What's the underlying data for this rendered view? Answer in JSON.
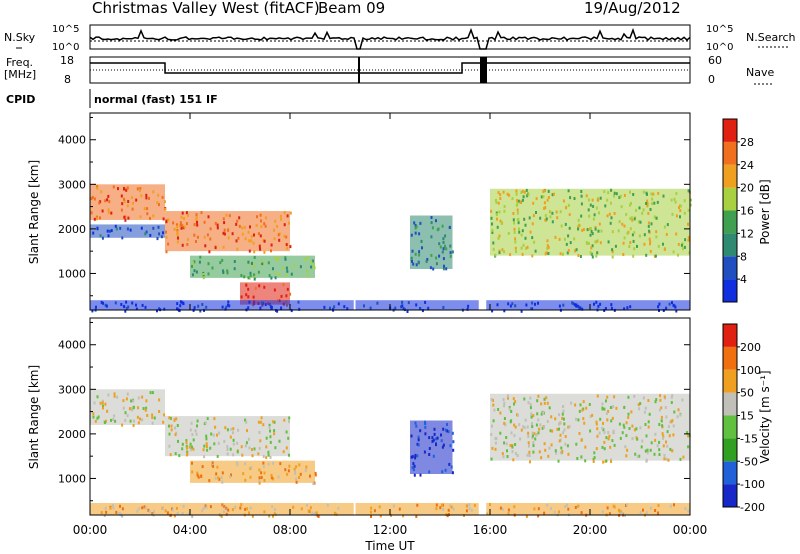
{
  "header": {
    "station": "Christmas Valley West (fitACF)",
    "beam": "Beam 09",
    "date": "19/Aug/2012"
  },
  "side_labels": {
    "nsky": "N.Sky",
    "nsearch": "N.Search",
    "freq": "Freq.",
    "freq_unit": "[MHz]",
    "nave": "Nave",
    "cpid": "CPID",
    "cpid_value": "normal (fast) 151 IF"
  },
  "noise_panel": {
    "left_ticks": [
      "10^5",
      "10^0"
    ],
    "right_ticks": [
      "10^5",
      "10^0"
    ]
  },
  "freq_panel": {
    "left_ticks": [
      "18",
      "8"
    ],
    "right_ticks": [
      "60",
      "0"
    ]
  },
  "colors": {
    "power_scale": [
      "#1030e0",
      "#2050c0",
      "#2e8a70",
      "#3fa050",
      "#a8d040",
      "#f0a020",
      "#f07020",
      "#e02010"
    ],
    "velocity_scale": [
      "#1828c8",
      "#2060d8",
      "#30a020",
      "#60c040",
      "#c0c0b8",
      "#f0a020",
      "#f07010",
      "#e02010"
    ]
  },
  "chart_data": [
    {
      "type": "heatmap",
      "title": "",
      "ylabel": "Slant Range [km]",
      "ylim": [
        180,
        4600
      ],
      "y_ticks": [
        "1000",
        "2000",
        "3000",
        "4000"
      ],
      "xlim": [
        0,
        24
      ],
      "colorbar_label": "Power [dB]",
      "colorbar_ticks": [
        "4",
        "8",
        "12",
        "16",
        "20",
        "24",
        "28"
      ],
      "regions": [
        {
          "t0": 0.0,
          "t1": 3.0,
          "r0": 2200,
          "r1": 3000,
          "level": 6
        },
        {
          "t0": 0.0,
          "t1": 3.0,
          "r0": 1800,
          "r1": 2100,
          "level": 1
        },
        {
          "t0": 3.0,
          "t1": 8.0,
          "r0": 1500,
          "r1": 2400,
          "level": 6
        },
        {
          "t0": 4.0,
          "t1": 9.0,
          "r0": 900,
          "r1": 1400,
          "level": 3
        },
        {
          "t0": 6.0,
          "t1": 8.0,
          "r0": 300,
          "r1": 800,
          "level": 7
        },
        {
          "t0": 12.8,
          "t1": 14.5,
          "r0": 1100,
          "r1": 2300,
          "level": 2
        },
        {
          "t0": 16.0,
          "t1": 24.0,
          "r0": 1400,
          "r1": 2900,
          "level": 4
        },
        {
          "t0": 0.0,
          "t1": 24.0,
          "r0": 180,
          "r1": 400,
          "level": 0
        }
      ]
    },
    {
      "type": "heatmap",
      "title": "",
      "xlabel": "Time UT",
      "ylabel": "Slant Range [km]",
      "ylim": [
        180,
        4600
      ],
      "y_ticks": [
        "1000",
        "2000",
        "3000",
        "4000"
      ],
      "x_ticks": [
        "00:00",
        "04:00",
        "08:00",
        "12:00",
        "16:00",
        "20:00",
        "00:00"
      ],
      "xlim": [
        0,
        24
      ],
      "colorbar_label": "Velocity [m s⁻¹]",
      "colorbar_ticks": [
        "200",
        "100",
        "50",
        "15",
        "-15",
        "-50",
        "-100",
        "-200"
      ],
      "regions": [
        {
          "t0": 0.0,
          "t1": 3.0,
          "r0": 2200,
          "r1": 3000,
          "level": 4
        },
        {
          "t0": 3.0,
          "t1": 8.0,
          "r0": 1500,
          "r1": 2400,
          "level": 4
        },
        {
          "t0": 4.0,
          "t1": 9.0,
          "r0": 900,
          "r1": 1400,
          "level": 5
        },
        {
          "t0": 12.8,
          "t1": 14.5,
          "r0": 1100,
          "r1": 2300,
          "level": 0
        },
        {
          "t0": 16.0,
          "t1": 24.0,
          "r0": 1400,
          "r1": 2900,
          "level": 4
        },
        {
          "t0": 0.0,
          "t1": 24.0,
          "r0": 180,
          "r1": 450,
          "level": 5
        }
      ]
    }
  ]
}
